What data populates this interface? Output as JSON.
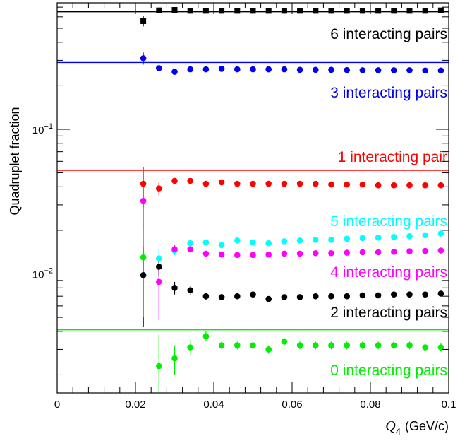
{
  "chart_data": {
    "type": "scatter",
    "xlabel": "(GeV/c)",
    "xlabel_symbol": "Q",
    "xlabel_subscript": "4",
    "ylabel": "Quadruplet fraction",
    "xlim": [
      0,
      0.1
    ],
    "ylim": [
      0.0015,
      0.75
    ],
    "yscale": "log",
    "grid": false,
    "x_ticks": [
      {
        "value": 0,
        "label": "0"
      },
      {
        "value": 0.02,
        "label": "0.02"
      },
      {
        "value": 0.04,
        "label": "0.04"
      },
      {
        "value": 0.06,
        "label": "0.06"
      },
      {
        "value": 0.08,
        "label": "0.08"
      },
      {
        "value": 0.1,
        "label": "0.1"
      }
    ],
    "y_ticks": [
      {
        "value": 0.1,
        "base": "10",
        "exp": "−1"
      },
      {
        "value": 0.01,
        "base": "10",
        "exp": "−2"
      }
    ],
    "x": [
      0.022,
      0.026,
      0.03,
      0.034,
      0.038,
      0.042,
      0.046,
      0.05,
      0.054,
      0.058,
      0.062,
      0.066,
      0.07,
      0.074,
      0.078,
      0.082,
      0.086,
      0.09,
      0.094,
      0.098
    ],
    "series": [
      {
        "name": "6 interacting pairs",
        "color": "#000000",
        "marker": "square",
        "reference": 0.65,
        "values": [
          0.56,
          0.665,
          0.67,
          0.66,
          0.66,
          0.66,
          0.66,
          0.66,
          0.66,
          0.66,
          0.66,
          0.66,
          0.66,
          0.66,
          0.66,
          0.66,
          0.66,
          0.66,
          0.66,
          0.665
        ],
        "errors": [
          0.045,
          0.015,
          0.01,
          0.01,
          0.01,
          0.01,
          0.01,
          0.01,
          0.01,
          0.01,
          0.01,
          0.01,
          0.01,
          0.01,
          0.01,
          0.01,
          0.01,
          0.01,
          0.01,
          0.01
        ]
      },
      {
        "name": "3 interacting pairs",
        "color": "#0000ee",
        "marker": "circle",
        "reference": 0.29,
        "values": [
          0.31,
          0.265,
          0.25,
          0.26,
          0.26,
          0.262,
          0.26,
          0.26,
          0.26,
          0.26,
          0.258,
          0.258,
          0.258,
          0.257,
          0.256,
          0.256,
          0.256,
          0.256,
          0.255,
          0.255
        ],
        "errors": [
          0.03,
          0.01,
          0.006,
          0.005,
          0.004,
          0.003,
          0.003,
          0.003,
          0.003,
          0.003,
          0.003,
          0.003,
          0.003,
          0.003,
          0.003,
          0.003,
          0.003,
          0.003,
          0.003,
          0.003
        ]
      },
      {
        "name": "1 interacting pair",
        "color": "#ff0000",
        "marker": "circle",
        "reference": 0.052,
        "values": [
          0.042,
          0.039,
          0.044,
          0.044,
          0.042,
          0.043,
          0.042,
          0.042,
          0.042,
          0.042,
          0.042,
          0.042,
          0.0415,
          0.0415,
          0.0415,
          0.041,
          0.041,
          0.041,
          0.041,
          0.041
        ],
        "errors": [
          0.013,
          0.004,
          0.002,
          0.0015,
          0.001,
          0.001,
          0.001,
          0.001,
          0.001,
          0.001,
          0.001,
          0.001,
          0.001,
          0.001,
          0.001,
          0.001,
          0.001,
          0.001,
          0.001,
          0.001
        ]
      },
      {
        "name": "5 interacting pairs",
        "color": "#00ffff",
        "marker": "circle",
        "values": [
          0.0098,
          0.0128,
          0.0145,
          0.0163,
          0.0165,
          0.0158,
          0.017,
          0.0165,
          0.0163,
          0.0168,
          0.017,
          0.0172,
          0.0172,
          0.0175,
          0.0177,
          0.0178,
          0.018,
          0.0182,
          0.0185,
          0.019
        ],
        "errors": [
          0.0055,
          0.002,
          0.001,
          0.0008,
          0.0006,
          0.0005,
          0.0005,
          0.0005,
          0.0005,
          0.0005,
          0.0005,
          0.0005,
          0.0005,
          0.0005,
          0.0005,
          0.0005,
          0.0005,
          0.0005,
          0.0005,
          0.0005
        ]
      },
      {
        "name": "4 interacting pairs",
        "color": "#ff00ff",
        "marker": "circle",
        "values": [
          0.032,
          0.0088,
          0.0148,
          0.0148,
          0.0138,
          0.0136,
          0.0135,
          0.0135,
          0.0136,
          0.0138,
          0.0138,
          0.0139,
          0.0139,
          0.014,
          0.0141,
          0.0141,
          0.0142,
          0.0143,
          0.0144,
          0.0145
        ],
        "errors": [
          0.022,
          0.004,
          0.001,
          0.0008,
          0.0006,
          0.0005,
          0.0005,
          0.0005,
          0.0005,
          0.0005,
          0.0005,
          0.0005,
          0.0005,
          0.0005,
          0.0005,
          0.0005,
          0.0005,
          0.0005,
          0.0005,
          0.0005
        ]
      },
      {
        "name": "2 interacting pairs",
        "color": "#000000",
        "marker": "circle",
        "values": [
          0.0098,
          0.0112,
          0.008,
          0.0077,
          0.007,
          0.0069,
          0.007,
          0.0072,
          0.0067,
          0.0069,
          0.0069,
          0.007,
          0.007,
          0.007,
          0.0071,
          0.0071,
          0.0072,
          0.0072,
          0.0072,
          0.0073
        ],
        "errors": [
          0.0055,
          0.0015,
          0.0008,
          0.0006,
          0.0004,
          0.0003,
          0.0003,
          0.0003,
          0.0003,
          0.0003,
          0.0003,
          0.0003,
          0.0003,
          0.0003,
          0.0003,
          0.0003,
          0.0003,
          0.0003,
          0.0003,
          0.0003
        ]
      },
      {
        "name": "0 interacting pairs",
        "color": "#00ee00",
        "marker": "circle",
        "reference": 0.0041,
        "values": [
          0.013,
          0.0023,
          0.0026,
          0.0031,
          0.0037,
          0.0032,
          0.0032,
          0.0032,
          0.003,
          0.0034,
          0.0032,
          0.0032,
          0.0032,
          0.0032,
          0.0032,
          0.0032,
          0.0032,
          0.0032,
          0.0031,
          0.0031
        ],
        "errors": [
          0.008,
          0.0015,
          0.0006,
          0.0004,
          0.0003,
          0.0002,
          0.0002,
          0.0002,
          0.0002,
          0.0002,
          0.0002,
          0.0002,
          0.0002,
          0.0002,
          0.0002,
          0.0002,
          0.0002,
          0.0002,
          0.0002,
          0.0002
        ]
      }
    ]
  }
}
